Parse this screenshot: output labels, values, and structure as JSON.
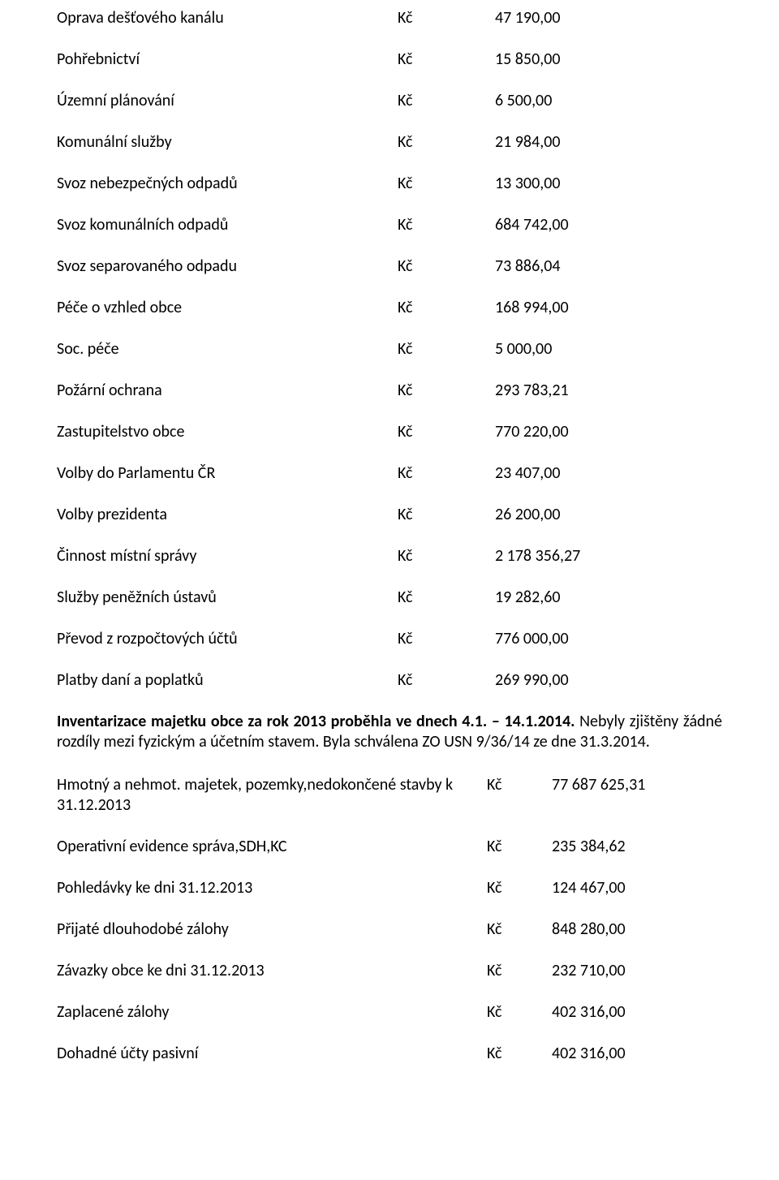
{
  "currency": "Kč",
  "items": [
    {
      "label": "Oprava dešťového kanálu",
      "value": "47 190,00"
    },
    {
      "label": "Pohřebnictví",
      "value": "15 850,00"
    },
    {
      "label": "Územní plánování",
      "value": "6 500,00"
    },
    {
      "label": "Komunální služby",
      "value": "21 984,00"
    },
    {
      "label": "Svoz nebezpečných odpadů",
      "value": "13 300,00"
    },
    {
      "label": "Svoz komunálních odpadů",
      "value": "684 742,00"
    },
    {
      "label": "Svoz separovaného odpadu",
      "value": "73 886,04"
    },
    {
      "label": "Péče o vzhled obce",
      "value": "168 994,00"
    },
    {
      "label": "Soc. péče",
      "value": "5 000,00"
    },
    {
      "label": "Požární ochrana",
      "value": "293 783,21"
    },
    {
      "label": "Zastupitelstvo obce",
      "value": "770 220,00"
    },
    {
      "label": "Volby do Parlamentu ČR",
      "value": "23 407,00"
    },
    {
      "label": "Volby prezidenta",
      "value": "26 200,00"
    },
    {
      "label": "Činnost místní správy",
      "value": "2 178 356,27"
    },
    {
      "label": "Služby peněžních ústavů",
      "value": "19 282,60"
    },
    {
      "label": "Převod  z rozpočtových účtů",
      "value": "776 000,00"
    },
    {
      "label": "Platby daní a poplatků",
      "value": "269 990,00"
    }
  ],
  "paragraph": {
    "bold_lead": "Inventarizace majetku obce za rok 2013 proběhla ve dnech 4.1. – 14.1.2014.",
    "rest": " Nebyly zjištěny žádné rozdíly mezi fyzickým a účetním stavem. Byla schválena ZO USN 9/36/14 ze dne 31.3.2014."
  },
  "assets": {
    "header_label": "Hmotný a nehmot. majetek, pozemky,nedokončené stavby k 31.12.2013",
    "header_value": "77 687 625,31",
    "rows": [
      {
        "label": "Operativní evidence správa,SDH,KC",
        "value": "235 384,62"
      },
      {
        "label": "Pohledávky ke dni 31.12.2013",
        "value": "124 467,00"
      },
      {
        "label": "Přijaté dlouhodobé zálohy",
        "value": "848 280,00"
      },
      {
        "label": "Závazky obce ke dni 31.12.2013",
        "value": "232 710,00"
      },
      {
        "label": "Zaplacené zálohy",
        "value": "402 316,00"
      },
      {
        "label": "Dohadné účty pasivní",
        "value": "402 316,00"
      }
    ]
  }
}
